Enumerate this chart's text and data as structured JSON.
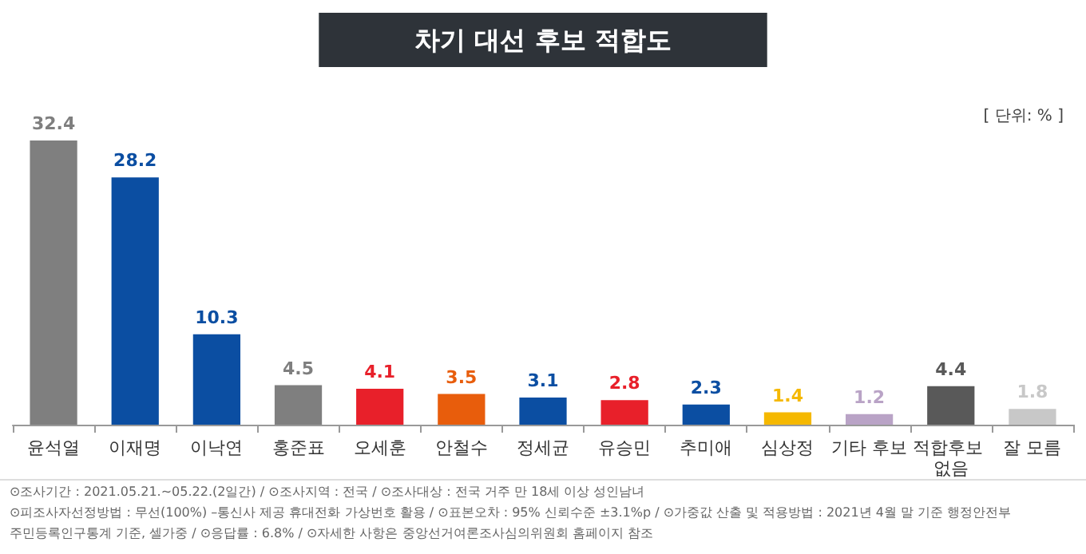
{
  "chart_data": {
    "type": "bar",
    "title": "차기 대선 후보 적합도",
    "subtitle": "[ 단위: % ]",
    "categories": [
      "윤석열",
      "이재명",
      "이낙연",
      "홍준표",
      "오세훈",
      "안철수",
      "정세균",
      "유승민",
      "추미애",
      "심상정",
      "기타 후보",
      "적합후보 없음",
      "잘 모름"
    ],
    "values": [
      32.4,
      28.2,
      10.3,
      4.5,
      4.1,
      3.5,
      3.1,
      2.8,
      2.3,
      1.4,
      1.2,
      4.4,
      1.8
    ],
    "colors": [
      "#7f7f7f",
      "#0b4ea2",
      "#0b4ea2",
      "#7f7f7f",
      "#e8202a",
      "#e85d0c",
      "#0b4ea2",
      "#e8202a",
      "#0b4ea2",
      "#f5b800",
      "#b9a3c6",
      "#595959",
      "#c8c8c8"
    ],
    "data_labels": true,
    "grid": false,
    "annotations": [
      "⊙조사기간 : 2021.05.21.~05.22.(2일간) / ⊙조사지역 : 전국 / ⊙조사대상 : 전국 거주 만 18세 이상 성인남녀",
      "⊙피조사자선정방법 : 무선(100%) –통신사 제공 휴대전화 가상번호 활용 / ⊙표본오차 : 95% 신뢰수준 ±3.1%p / ⊙가중값 산출 및 적용방법 : 2021년 4월 말 기준 행정안전부",
      "주민등록인구통계 기준, 셀가중 / ⊙응답률 : 6.8% / ⊙자세한 사항은 중앙선거여론조사심의위원회 홈페이지 참조"
    ]
  }
}
